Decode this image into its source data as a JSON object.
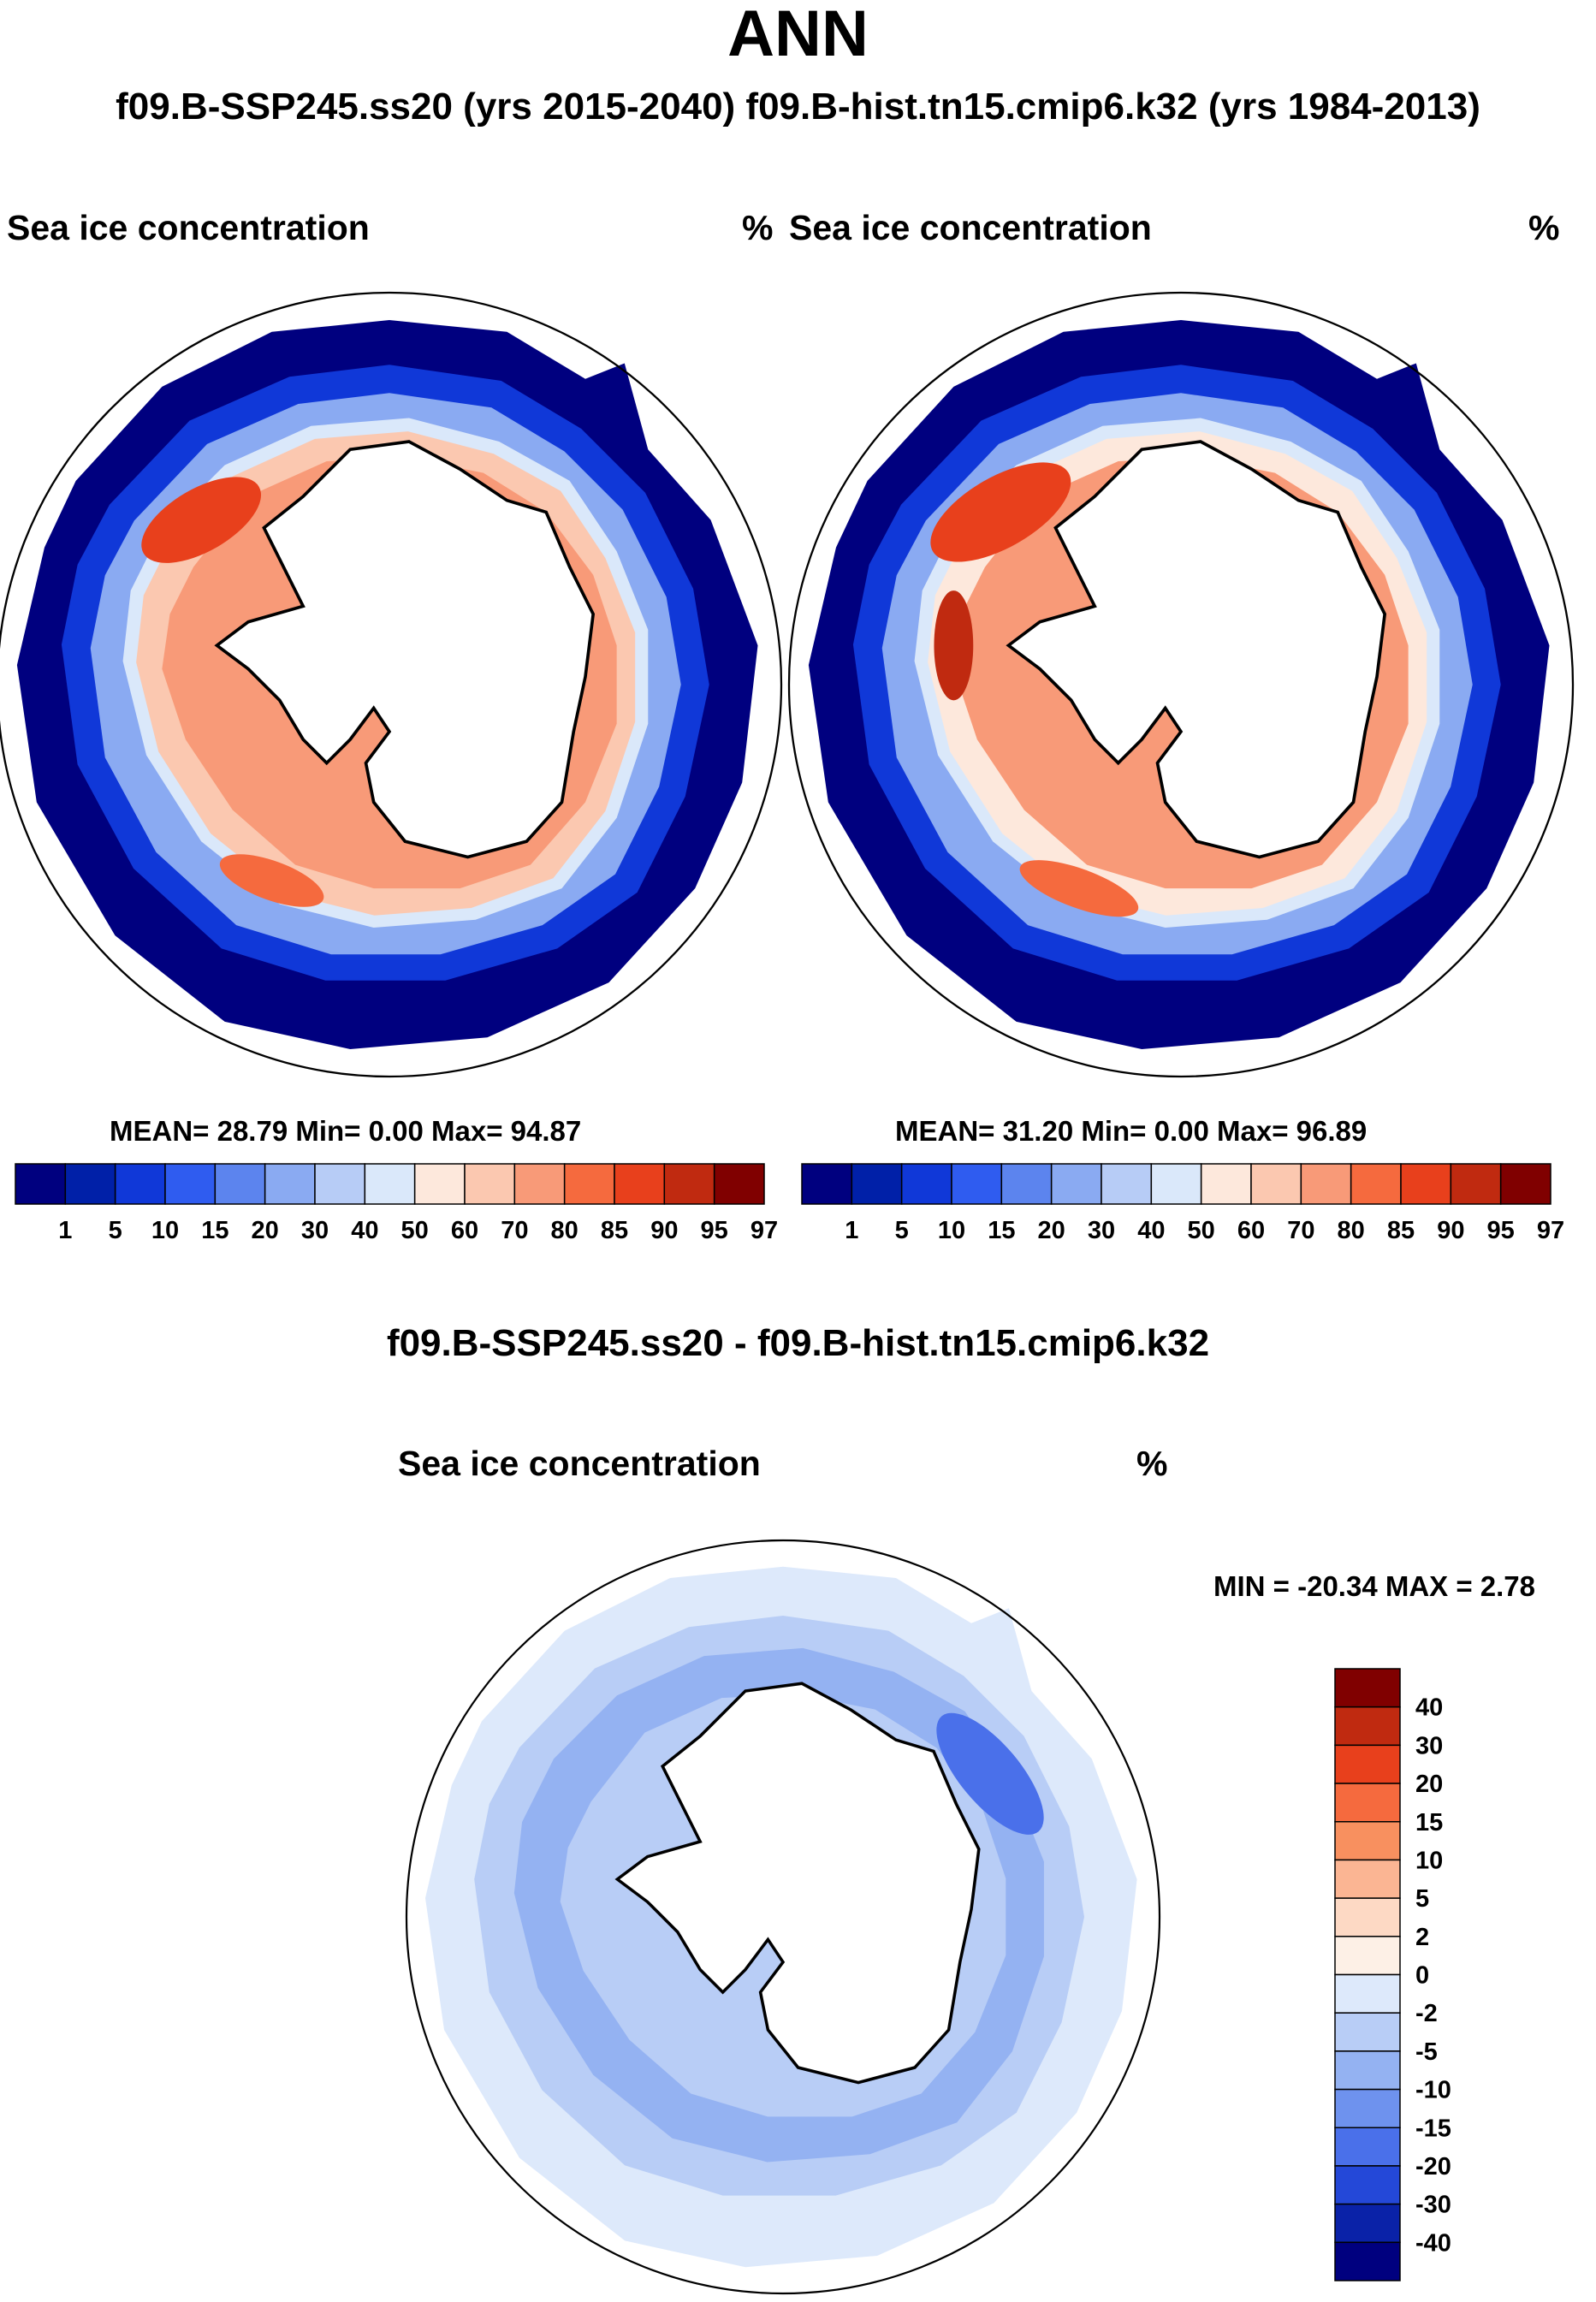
{
  "header": {
    "title": "ANN",
    "subtitle": "f09.B-SSP245.ss20 (yrs 2015-2040)  f09.B-hist.tn15.cmip6.k32 (yrs 1984-2013)"
  },
  "panels": {
    "left": {
      "variable": "Sea ice concentration",
      "units": "%",
      "stats": "MEAN=  28.79  Min=    0.00  Max=  94.87"
    },
    "right": {
      "variable": "Sea ice concentration",
      "units": "%",
      "stats": "MEAN=  31.20  Min=    0.00  Max=  96.89"
    },
    "diff": {
      "header": "f09.B-SSP245.ss20 - f09.B-hist.tn15.cmip6.k32",
      "variable": "Sea ice concentration",
      "units": "%",
      "stats": "MIN = -20.34 MAX =   2.78"
    }
  },
  "chart_data": [
    {
      "type": "heatmap",
      "projection": "south polar stereographic",
      "title": "Sea ice concentration",
      "units": "%",
      "run": "f09.B-SSP245.ss20 (yrs 2015-2040)",
      "mean": 28.79,
      "min": 0.0,
      "max": 94.87,
      "colorbar_levels": [
        1,
        5,
        10,
        15,
        20,
        30,
        40,
        50,
        60,
        70,
        80,
        85,
        90,
        95,
        97
      ],
      "colorbar_colors": [
        "#00007f",
        "#0020a8",
        "#1038d8",
        "#2f5cf0",
        "#5c84ee",
        "#8aaaf2",
        "#b7ccf6",
        "#dae8fa",
        "#fde8dc",
        "#fbc8b0",
        "#f89a78",
        "#f56a3e",
        "#e8401c",
        "#c02a10",
        "#800000"
      ]
    },
    {
      "type": "heatmap",
      "projection": "south polar stereographic",
      "title": "Sea ice concentration",
      "units": "%",
      "run": "f09.B-hist.tn15.cmip6.k32 (yrs 1984-2013)",
      "mean": 31.2,
      "min": 0.0,
      "max": 96.89,
      "colorbar_levels": [
        1,
        5,
        10,
        15,
        20,
        30,
        40,
        50,
        60,
        70,
        80,
        85,
        90,
        95,
        97
      ],
      "colorbar_colors": [
        "#00007f",
        "#0020a8",
        "#1038d8",
        "#2f5cf0",
        "#5c84ee",
        "#8aaaf2",
        "#b7ccf6",
        "#dae8fa",
        "#fde8dc",
        "#fbc8b0",
        "#f89a78",
        "#f56a3e",
        "#e8401c",
        "#c02a10",
        "#800000"
      ]
    },
    {
      "type": "heatmap",
      "projection": "south polar stereographic",
      "title": "Sea ice concentration",
      "units": "%",
      "run": "f09.B-SSP245.ss20 - f09.B-hist.tn15.cmip6.k32",
      "min": -20.34,
      "max": 2.78,
      "colorbar_levels": [
        40,
        30,
        20,
        15,
        10,
        5,
        2,
        0,
        -2,
        -5,
        -10,
        -15,
        -20,
        -30,
        -40
      ],
      "colorbar_colors": [
        "#800000",
        "#c02a10",
        "#e8401c",
        "#f56a3e",
        "#f8905f",
        "#fbb593",
        "#fdd9c4",
        "#fdf0e6",
        "#dde9fb",
        "#b8cdf6",
        "#94b2f2",
        "#6e92ee",
        "#4a70ea",
        "#2448d8",
        "#0a22a8",
        "#00007f"
      ]
    }
  ]
}
